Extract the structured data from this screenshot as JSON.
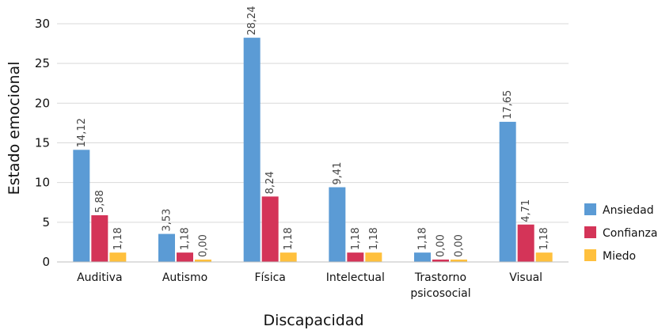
{
  "chart_data": {
    "type": "bar",
    "title": "",
    "xlabel": "Discapacidad",
    "ylabel": "Estado emocional",
    "ylim": [
      0,
      30
    ],
    "yticks": [
      0,
      5,
      10,
      15,
      20,
      25,
      30
    ],
    "grid": true,
    "legend_position": "right",
    "categories": [
      [
        "Auditiva"
      ],
      [
        "Autismo"
      ],
      [
        "Física"
      ],
      [
        "Intelectual"
      ],
      [
        "Trastorno",
        "psicosocial"
      ],
      [
        "Visual"
      ]
    ],
    "series": [
      {
        "name": "Ansiedad",
        "color": "#5b9bd5",
        "values": [
          14.12,
          3.53,
          28.24,
          9.41,
          1.18,
          17.65
        ],
        "labels": [
          "14,12",
          "3,53",
          "28,24",
          "9,41",
          "1,18",
          "17,65"
        ]
      },
      {
        "name": "Confianza",
        "color": "#d43458",
        "values": [
          5.88,
          1.18,
          8.24,
          1.18,
          0.0,
          4.71
        ],
        "labels": [
          "5,88",
          "1,18",
          "8,24",
          "1,18",
          "0,00",
          "4,71"
        ]
      },
      {
        "name": "Miedo",
        "color": "#ffc03d",
        "values": [
          1.18,
          0.0,
          1.18,
          1.18,
          0.0,
          1.18
        ],
        "labels": [
          "1,18",
          "0,00",
          "1,18",
          "1,18",
          "0,00",
          "1,18"
        ]
      }
    ]
  }
}
